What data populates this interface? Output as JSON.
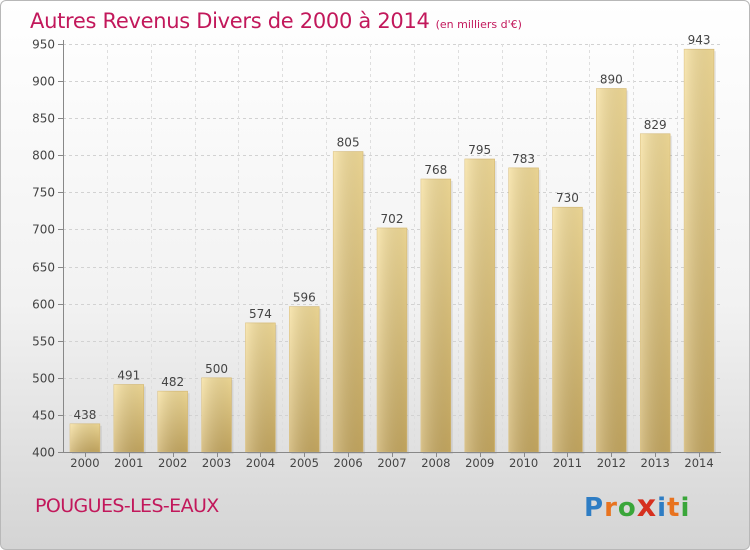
{
  "header": {
    "title": "Autres Revenus Divers de 2000 à 2014",
    "subtitle": "(en milliers d'€)"
  },
  "footer": {
    "commune": "POUGUES-LES-EAUX",
    "logo": {
      "letters": [
        "P",
        "r",
        "o",
        "x",
        "i",
        "t",
        "i"
      ],
      "colors": [
        "#2e7dc4",
        "#e8731f",
        "#3aa63a",
        "#d6301f",
        "#2e7dc4",
        "#e8731f",
        "#3aa63a"
      ]
    }
  },
  "chart_data": {
    "type": "bar",
    "categories": [
      "2000",
      "2001",
      "2002",
      "2003",
      "2004",
      "2005",
      "2006",
      "2007",
      "2008",
      "2009",
      "2010",
      "2011",
      "2012",
      "2013",
      "2014"
    ],
    "values": [
      438,
      491,
      482,
      500,
      574,
      596,
      805,
      702,
      768,
      795,
      783,
      730,
      890,
      829,
      943
    ],
    "title": "Autres Revenus Divers de 2000 à 2014",
    "subtitle": "(en milliers d'€)",
    "xlabel": "",
    "ylabel": "",
    "ylim": [
      400,
      950
    ],
    "yticks": [
      400,
      450,
      500,
      550,
      600,
      650,
      700,
      750,
      800,
      850,
      900,
      950
    ],
    "grid": true,
    "bar_color": "#e2c27a"
  }
}
